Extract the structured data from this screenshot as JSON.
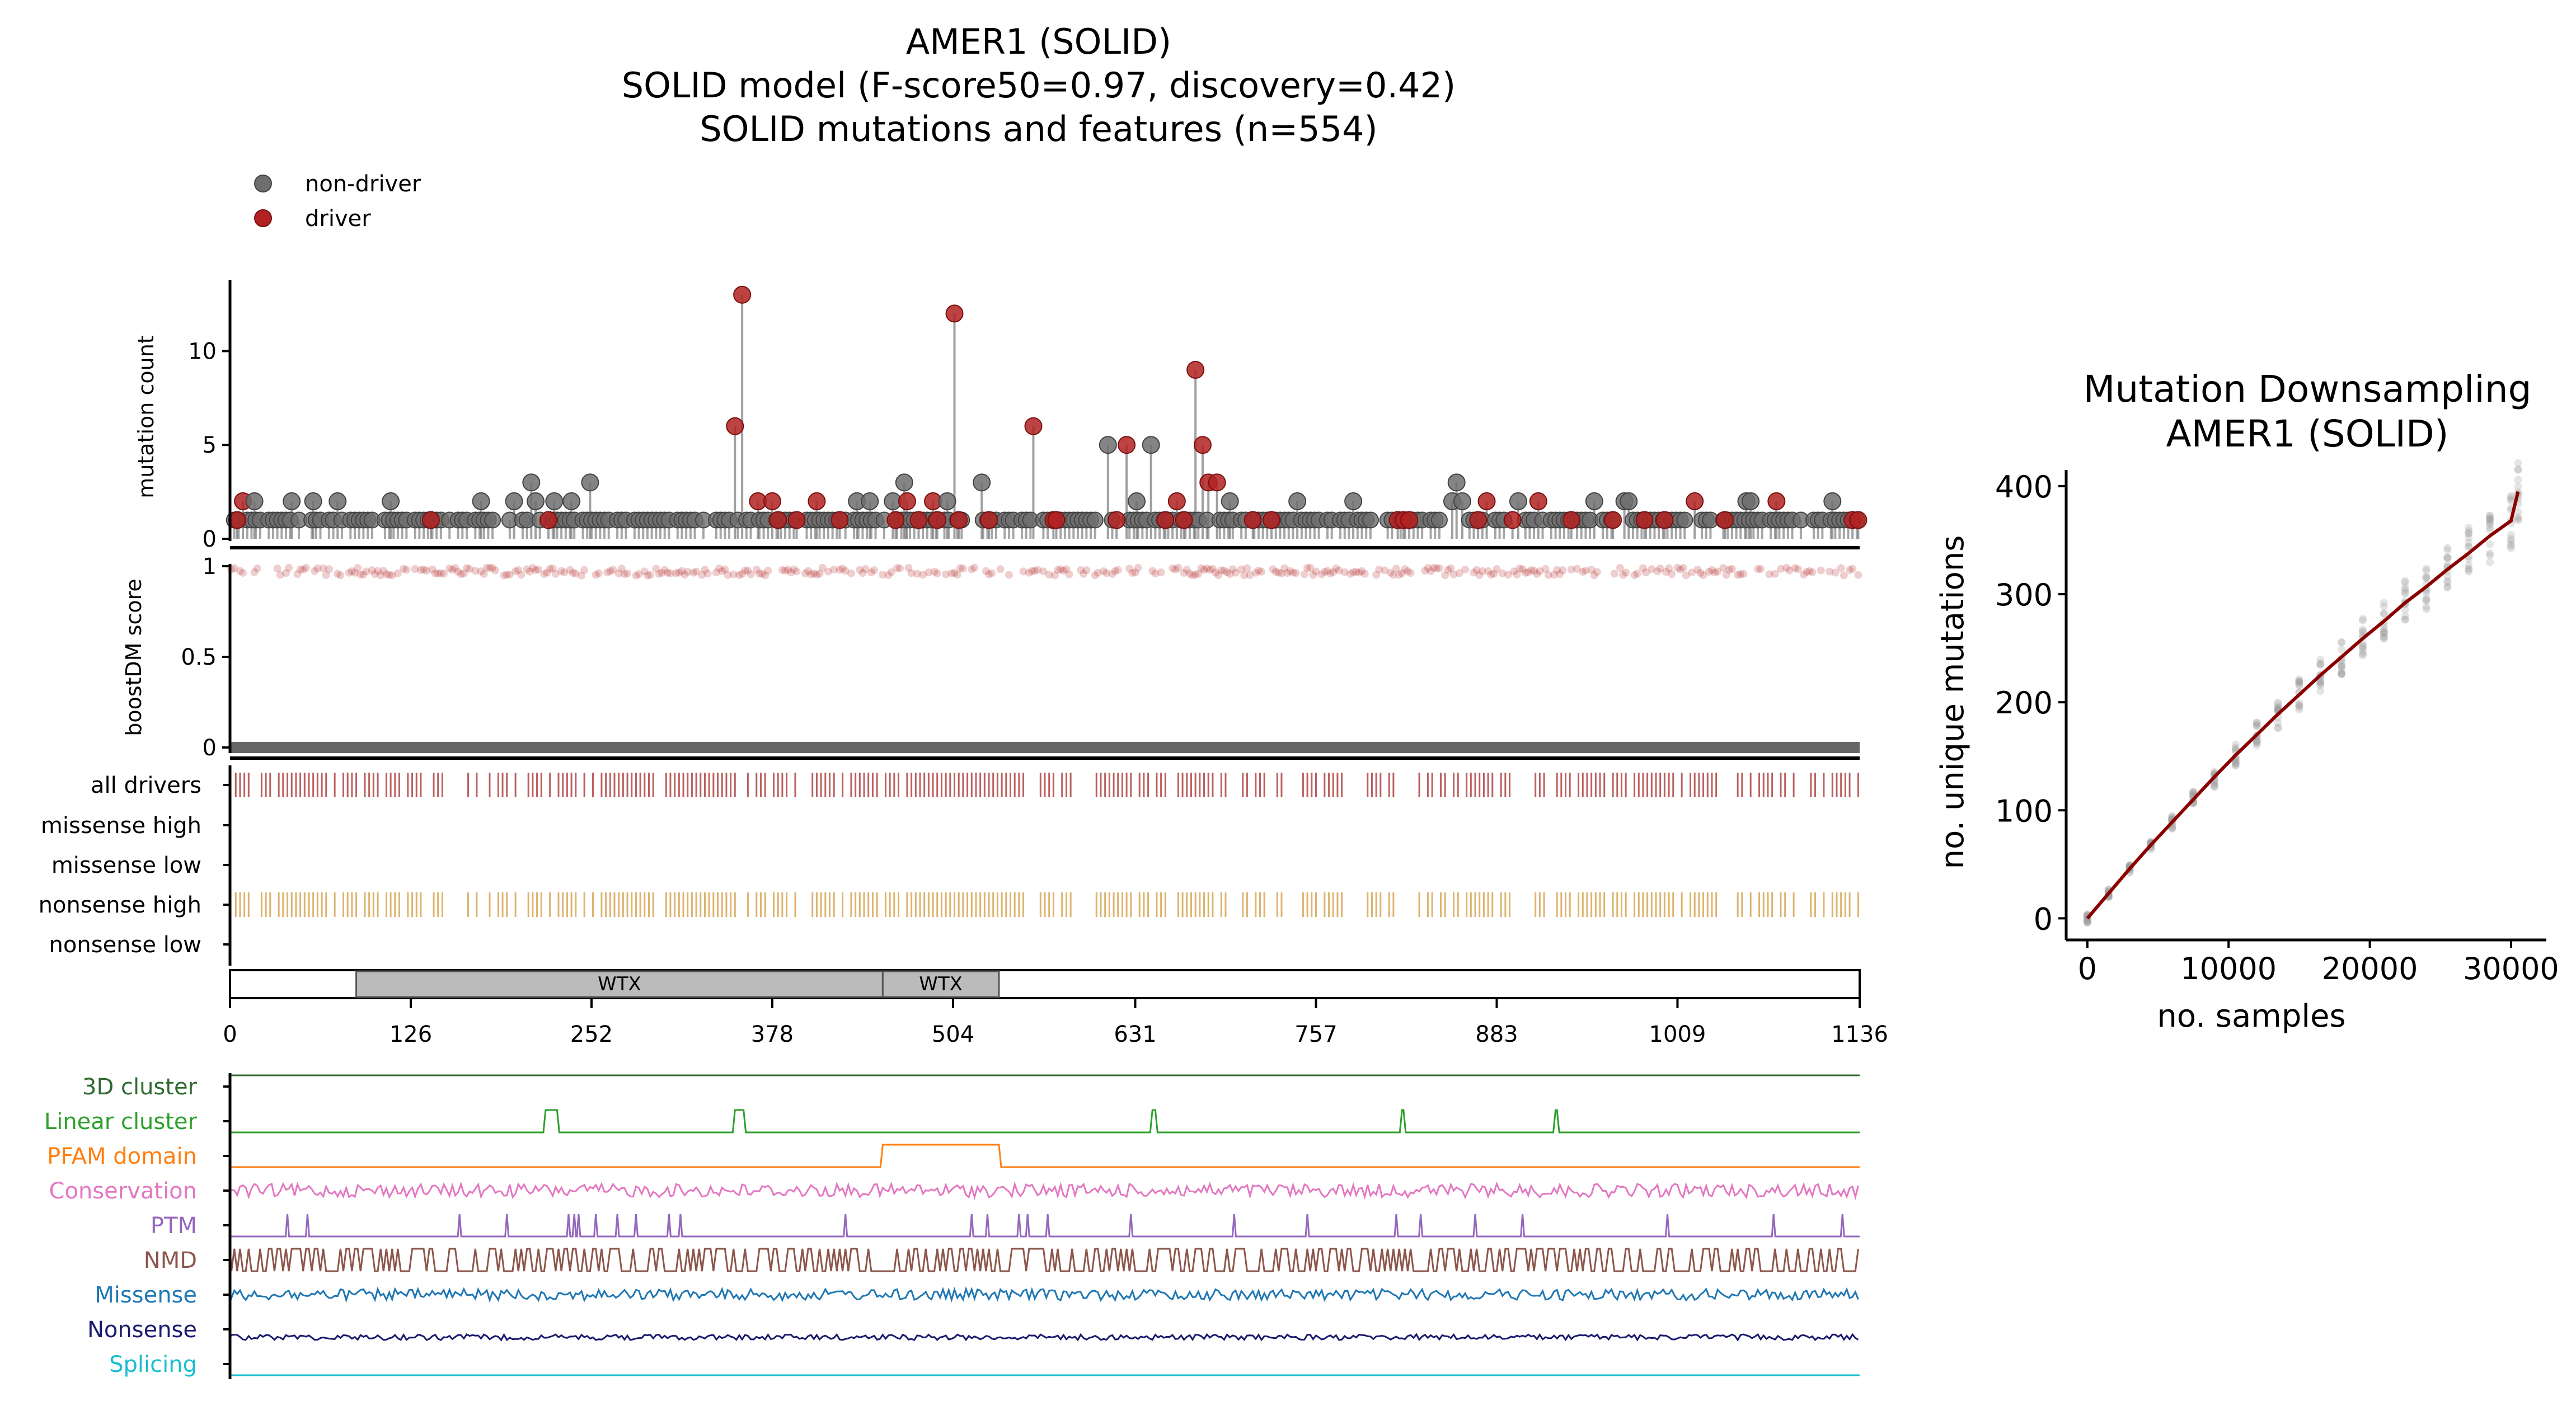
{
  "title_lines": [
    "AMER1 (SOLID)",
    "SOLID model (F-score50=0.97, discovery=0.42)",
    "SOLID mutations and features (n=554)"
  ],
  "legend": [
    {
      "label": "non-driver",
      "color": "#6e6e6e"
    },
    {
      "label": "driver",
      "color": "#b22222"
    }
  ],
  "colors": {
    "non_driver": "#6e6e6e",
    "driver": "#b22222",
    "all_drivers": "#a52a2a",
    "nonsense_high": "#d4a04a",
    "domain_fill": "#bbbbbb",
    "downsampling_line": "#8b0000"
  },
  "chart_data": [
    {
      "type": "scatter",
      "subtype": "lollipop",
      "name": "mutation count",
      "ylabel": "mutation count",
      "ylim": [
        0,
        13.8
      ],
      "yticks": [
        0,
        5,
        10
      ],
      "xlim": [
        0,
        1136
      ],
      "background_positions": "most positions between 0 and 1136 carry 1 mutation",
      "points": [
        {
          "pos": 5,
          "count": 1,
          "driver": true
        },
        {
          "pos": 9,
          "count": 2,
          "driver": true
        },
        {
          "pos": 17,
          "count": 2,
          "driver": false
        },
        {
          "pos": 43,
          "count": 2,
          "driver": false
        },
        {
          "pos": 58,
          "count": 2,
          "driver": false
        },
        {
          "pos": 75,
          "count": 2,
          "driver": false
        },
        {
          "pos": 112,
          "count": 2,
          "driver": false
        },
        {
          "pos": 140,
          "count": 1,
          "driver": true
        },
        {
          "pos": 175,
          "count": 2,
          "driver": false
        },
        {
          "pos": 198,
          "count": 2,
          "driver": false
        },
        {
          "pos": 210,
          "count": 3,
          "driver": false
        },
        {
          "pos": 213,
          "count": 2,
          "driver": false
        },
        {
          "pos": 222,
          "count": 1,
          "driver": true
        },
        {
          "pos": 226,
          "count": 2,
          "driver": false
        },
        {
          "pos": 238,
          "count": 2,
          "driver": false
        },
        {
          "pos": 251,
          "count": 3,
          "driver": false
        },
        {
          "pos": 352,
          "count": 6,
          "driver": true
        },
        {
          "pos": 357,
          "count": 13,
          "driver": true
        },
        {
          "pos": 368,
          "count": 2,
          "driver": true
        },
        {
          "pos": 378,
          "count": 2,
          "driver": true
        },
        {
          "pos": 382,
          "count": 1,
          "driver": true
        },
        {
          "pos": 395,
          "count": 1,
          "driver": true
        },
        {
          "pos": 409,
          "count": 2,
          "driver": true
        },
        {
          "pos": 425,
          "count": 1,
          "driver": true
        },
        {
          "pos": 437,
          "count": 2,
          "driver": false
        },
        {
          "pos": 446,
          "count": 2,
          "driver": false
        },
        {
          "pos": 462,
          "count": 2,
          "driver": false
        },
        {
          "pos": 464,
          "count": 1,
          "driver": true
        },
        {
          "pos": 470,
          "count": 3,
          "driver": false
        },
        {
          "pos": 472,
          "count": 2,
          "driver": true
        },
        {
          "pos": 480,
          "count": 1,
          "driver": true
        },
        {
          "pos": 490,
          "count": 2,
          "driver": true
        },
        {
          "pos": 493,
          "count": 1,
          "driver": true
        },
        {
          "pos": 500,
          "count": 2,
          "driver": false
        },
        {
          "pos": 505,
          "count": 12,
          "driver": true
        },
        {
          "pos": 508,
          "count": 1,
          "driver": true
        },
        {
          "pos": 524,
          "count": 3,
          "driver": false
        },
        {
          "pos": 529,
          "count": 1,
          "driver": true
        },
        {
          "pos": 560,
          "count": 6,
          "driver": true
        },
        {
          "pos": 574,
          "count": 1,
          "driver": true
        },
        {
          "pos": 576,
          "count": 1,
          "driver": true
        },
        {
          "pos": 612,
          "count": 5,
          "driver": false
        },
        {
          "pos": 618,
          "count": 1,
          "driver": true
        },
        {
          "pos": 625,
          "count": 5,
          "driver": true
        },
        {
          "pos": 632,
          "count": 2,
          "driver": false
        },
        {
          "pos": 642,
          "count": 5,
          "driver": false
        },
        {
          "pos": 652,
          "count": 1,
          "driver": true
        },
        {
          "pos": 660,
          "count": 2,
          "driver": true
        },
        {
          "pos": 665,
          "count": 1,
          "driver": true
        },
        {
          "pos": 673,
          "count": 9,
          "driver": true
        },
        {
          "pos": 678,
          "count": 5,
          "driver": true
        },
        {
          "pos": 682,
          "count": 3,
          "driver": true
        },
        {
          "pos": 688,
          "count": 3,
          "driver": true
        },
        {
          "pos": 697,
          "count": 2,
          "driver": false
        },
        {
          "pos": 713,
          "count": 1,
          "driver": true
        },
        {
          "pos": 726,
          "count": 1,
          "driver": true
        },
        {
          "pos": 744,
          "count": 2,
          "driver": false
        },
        {
          "pos": 783,
          "count": 2,
          "driver": false
        },
        {
          "pos": 814,
          "count": 1,
          "driver": true
        },
        {
          "pos": 818,
          "count": 1,
          "driver": true
        },
        {
          "pos": 822,
          "count": 1,
          "driver": true
        },
        {
          "pos": 852,
          "count": 2,
          "driver": false
        },
        {
          "pos": 855,
          "count": 3,
          "driver": false
        },
        {
          "pos": 859,
          "count": 2,
          "driver": false
        },
        {
          "pos": 870,
          "count": 1,
          "driver": true
        },
        {
          "pos": 876,
          "count": 2,
          "driver": true
        },
        {
          "pos": 894,
          "count": 1,
          "driver": true
        },
        {
          "pos": 898,
          "count": 2,
          "driver": false
        },
        {
          "pos": 912,
          "count": 2,
          "driver": true
        },
        {
          "pos": 935,
          "count": 1,
          "driver": true
        },
        {
          "pos": 951,
          "count": 2,
          "driver": false
        },
        {
          "pos": 964,
          "count": 1,
          "driver": true
        },
        {
          "pos": 972,
          "count": 2,
          "driver": false
        },
        {
          "pos": 975,
          "count": 2,
          "driver": false
        },
        {
          "pos": 986,
          "count": 1,
          "driver": true
        },
        {
          "pos": 1000,
          "count": 1,
          "driver": true
        },
        {
          "pos": 1021,
          "count": 2,
          "driver": true
        },
        {
          "pos": 1042,
          "count": 1,
          "driver": true
        },
        {
          "pos": 1057,
          "count": 2,
          "driver": false
        },
        {
          "pos": 1060,
          "count": 2,
          "driver": false
        },
        {
          "pos": 1078,
          "count": 2,
          "driver": true
        },
        {
          "pos": 1117,
          "count": 2,
          "driver": false
        },
        {
          "pos": 1131,
          "count": 1,
          "driver": true
        },
        {
          "pos": 1135,
          "count": 1,
          "driver": true
        }
      ]
    },
    {
      "type": "scatter",
      "name": "boostDM score",
      "ylabel": "boostDM score",
      "ylim": [
        0,
        1
      ],
      "yticks": [
        0,
        0.5,
        1
      ],
      "yticklabels": [
        "0",
        "0.5",
        "1"
      ],
      "xlim": [
        0,
        1136
      ],
      "description": "all positions score ~1 for nonsense changes and 0 elsewhere",
      "score_high": 0.97,
      "score_low": 0
    },
    {
      "type": "heatmap",
      "name": "tracks",
      "rows": [
        "all drivers",
        "missense high",
        "missense low",
        "nonsense high",
        "nonsense low"
      ],
      "xlim": [
        0,
        1136
      ]
    },
    {
      "type": "bar",
      "name": "protein domains",
      "xlim": [
        0,
        1136
      ],
      "xticks": [
        0,
        126,
        252,
        378,
        504,
        631,
        757,
        883,
        1009,
        1136
      ],
      "domains": [
        {
          "label": "WTX",
          "start": 88,
          "end": 455
        },
        {
          "label": "WTX",
          "start": 455,
          "end": 536
        }
      ]
    },
    {
      "type": "line",
      "name": "features",
      "xlim": [
        0,
        1136
      ],
      "features": [
        {
          "label": "3D cluster",
          "color": "#2f6b2f"
        },
        {
          "label": "Linear cluster",
          "color": "#2ca02c",
          "peaks": [
            [
              220,
              228
            ],
            [
              352,
              358
            ],
            [
              643,
              645
            ],
            [
              817,
              818
            ],
            [
              924,
              925
            ]
          ]
        },
        {
          "label": "PFAM domain",
          "color": "#ff7f0e",
          "intervals": [
            [
              455,
              536
            ]
          ]
        },
        {
          "label": "Conservation",
          "color": "#e377c2"
        },
        {
          "label": "PTM",
          "color": "#9467bd",
          "peaks": [
            40,
            54,
            160,
            193,
            236,
            240,
            243,
            255,
            270,
            283,
            306,
            314,
            429,
            517,
            528,
            550,
            556,
            570,
            628,
            700,
            751,
            813,
            830,
            868,
            901,
            1002,
            1076,
            1124
          ]
        },
        {
          "label": "NMD",
          "color": "#8c564b"
        },
        {
          "label": "Missense",
          "color": "#1f77b4"
        },
        {
          "label": "Nonsense",
          "color": "#1a1a6e"
        },
        {
          "label": "Splicing",
          "color": "#17becf"
        }
      ]
    },
    {
      "type": "line",
      "title": "Mutation Downsampling\nAMER1 (SOLID)",
      "title_lines": [
        "Mutation Downsampling",
        "AMER1 (SOLID)"
      ],
      "xlabel": "no. samples",
      "ylabel": "no. unique mutations",
      "xlim": [
        -1500,
        32500
      ],
      "ylim": [
        -20,
        415
      ],
      "xticks": [
        0,
        10000,
        20000,
        30000
      ],
      "yticks": [
        0,
        100,
        200,
        300,
        400
      ],
      "x": [
        0,
        1500,
        3000,
        4500,
        6000,
        7500,
        9000,
        10500,
        12000,
        13500,
        15000,
        16500,
        18000,
        19500,
        21000,
        22500,
        24000,
        25500,
        27000,
        28500,
        30000,
        30500
      ],
      "series": [
        {
          "values": [
            0,
            23,
            46,
            68,
            89,
            110,
            131,
            151,
            170,
            189,
            207,
            225,
            242,
            259,
            275,
            292,
            307,
            323,
            338,
            354,
            368,
            395
          ]
        }
      ]
    }
  ]
}
